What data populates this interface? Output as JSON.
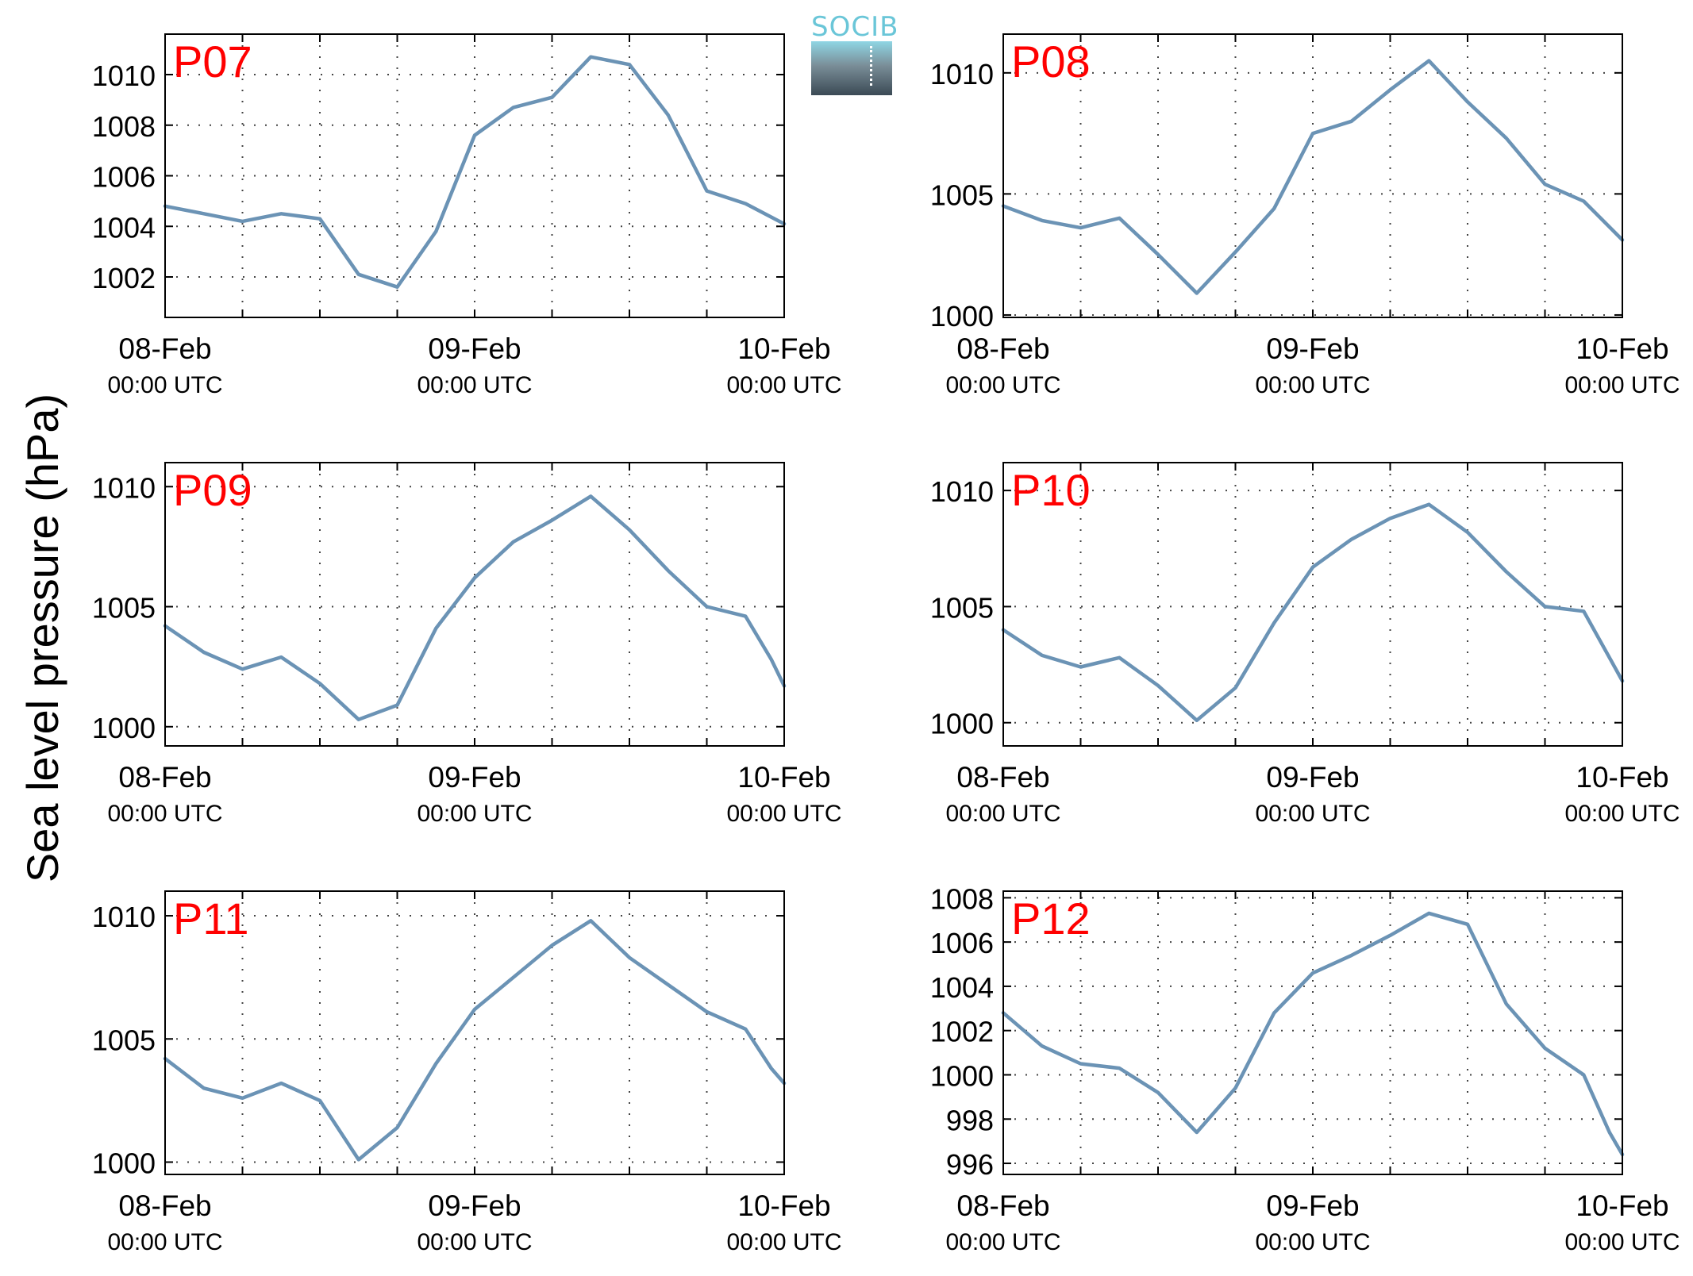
{
  "ylabel": "Sea level pressure (hPa)",
  "logo_text": "SOCIB",
  "colors": {
    "line": "#6b93b5",
    "station_label": "#ff0000",
    "grid": "#444444",
    "axis": "#000000"
  },
  "x_ticks": [
    {
      "date": "08-Feb",
      "time": "00:00 UTC"
    },
    {
      "date": "09-Feb",
      "time": "00:00 UTC"
    },
    {
      "date": "10-Feb",
      "time": "00:00 UTC"
    }
  ],
  "chart_data": [
    {
      "type": "line",
      "title": "P07",
      "xlabel": "",
      "ylabel": "",
      "xlim": [
        "08-Feb 00:00",
        "10-Feb 00:00"
      ],
      "ylim": [
        1000.4,
        1011.6
      ],
      "yticks": [
        1002,
        1004,
        1006,
        1008,
        1010
      ],
      "ytick_labels": [
        "1002",
        "1004",
        "1006",
        "1008",
        "1010"
      ],
      "grid": true,
      "x_hours": [
        0,
        3,
        6,
        9,
        12,
        15,
        18,
        21,
        24,
        27,
        30,
        33,
        36,
        39,
        42,
        45,
        48
      ],
      "y": [
        1004.8,
        1004.5,
        1004.2,
        1004.5,
        1004.3,
        1002.1,
        1001.6,
        1003.8,
        1007.6,
        1008.7,
        1009.1,
        1010.7,
        1010.4,
        1008.4,
        1005.4,
        1004.9,
        1004.1
      ]
    },
    {
      "type": "line",
      "title": "P08",
      "xlabel": "",
      "ylabel": "",
      "xlim": [
        "08-Feb 00:00",
        "10-Feb 00:00"
      ],
      "ylim": [
        999.9,
        1011.6
      ],
      "yticks": [
        1000,
        1005,
        1010
      ],
      "ytick_labels": [
        "1000",
        "1005",
        "1010"
      ],
      "grid": true,
      "x_hours": [
        0,
        3,
        6,
        9,
        12,
        15,
        18,
        21,
        24,
        27,
        30,
        33,
        36,
        39,
        42,
        45,
        48
      ],
      "y": [
        1004.5,
        1003.9,
        1003.6,
        1004.0,
        1002.5,
        1000.9,
        1002.6,
        1004.4,
        1007.5,
        1008.0,
        1009.3,
        1010.5,
        1008.8,
        1007.3,
        1005.4,
        1004.7,
        1003.1
      ]
    },
    {
      "type": "line",
      "title": "P09",
      "xlabel": "",
      "ylabel": "",
      "xlim": [
        "08-Feb 00:00",
        "10-Feb 00:00"
      ],
      "ylim": [
        999.2,
        1011.0
      ],
      "yticks": [
        1000,
        1005,
        1010
      ],
      "ytick_labels": [
        "1000",
        "1005",
        "1010"
      ],
      "grid": true,
      "x_hours": [
        0,
        3,
        6,
        9,
        12,
        15,
        18,
        21,
        24,
        27,
        30,
        33,
        36,
        39,
        42,
        45,
        47,
        48
      ],
      "y": [
        1004.2,
        1003.1,
        1002.4,
        1002.9,
        1001.8,
        1000.3,
        1000.9,
        1004.1,
        1006.2,
        1007.7,
        1008.6,
        1009.6,
        1008.2,
        1006.5,
        1005.0,
        1004.6,
        1002.8,
        1001.7
      ]
    },
    {
      "type": "line",
      "title": "P10",
      "xlabel": "",
      "ylabel": "",
      "xlim": [
        "08-Feb 00:00",
        "10-Feb 00:00"
      ],
      "ylim": [
        999.0,
        1011.2
      ],
      "yticks": [
        1000,
        1005,
        1010
      ],
      "ytick_labels": [
        "1000",
        "1005",
        "1010"
      ],
      "grid": true,
      "x_hours": [
        0,
        3,
        6,
        9,
        12,
        15,
        18,
        21,
        24,
        27,
        30,
        33,
        36,
        39,
        42,
        45,
        47,
        48
      ],
      "y": [
        1004.0,
        1002.9,
        1002.4,
        1002.8,
        1001.6,
        1000.1,
        1001.5,
        1004.3,
        1006.7,
        1007.9,
        1008.8,
        1009.4,
        1008.2,
        1006.5,
        1005.0,
        1004.8,
        1002.8,
        1001.8
      ]
    },
    {
      "type": "line",
      "title": "P11",
      "xlabel": "",
      "ylabel": "",
      "xlim": [
        "08-Feb 00:00",
        "10-Feb 00:00"
      ],
      "ylim": [
        999.5,
        1011.0
      ],
      "yticks": [
        1000,
        1005,
        1010
      ],
      "ytick_labels": [
        "1000",
        "1005",
        "1010"
      ],
      "grid": true,
      "x_hours": [
        0,
        3,
        6,
        9,
        12,
        15,
        18,
        21,
        24,
        27,
        30,
        33,
        36,
        39,
        42,
        45,
        47,
        48
      ],
      "y": [
        1004.2,
        1003.0,
        1002.6,
        1003.2,
        1002.5,
        1000.1,
        1001.4,
        1004.0,
        1006.2,
        1007.5,
        1008.8,
        1009.8,
        1008.3,
        1007.2,
        1006.1,
        1005.4,
        1003.8,
        1003.2
      ]
    },
    {
      "type": "line",
      "title": "P12",
      "xlabel": "",
      "ylabel": "",
      "xlim": [
        "08-Feb 00:00",
        "10-Feb 00:00"
      ],
      "ylim": [
        995.5,
        1008.3
      ],
      "yticks": [
        996,
        998,
        1000,
        1002,
        1004,
        1006,
        1008
      ],
      "ytick_labels": [
        "996",
        "998",
        "1000",
        "1002",
        "1004",
        "1006",
        "1008"
      ],
      "grid": true,
      "x_hours": [
        0,
        3,
        6,
        9,
        12,
        15,
        18,
        21,
        24,
        27,
        30,
        33,
        36,
        39,
        42,
        45,
        47,
        48
      ],
      "y": [
        1002.8,
        1001.3,
        1000.5,
        1000.3,
        999.2,
        997.4,
        999.4,
        1002.8,
        1004.6,
        1005.4,
        1006.3,
        1007.3,
        1006.8,
        1003.2,
        1001.2,
        1000.0,
        997.4,
        996.4
      ]
    }
  ]
}
